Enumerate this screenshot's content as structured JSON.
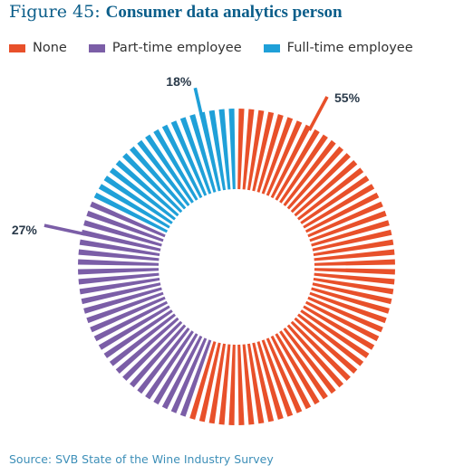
{
  "header": {
    "prefix": "Figure 45: ",
    "title": "Consumer data analytics person"
  },
  "chart_data": {
    "type": "pie",
    "style": "radial-bar donut",
    "title": "Consumer data analytics person",
    "legend_position": "top",
    "series": [
      {
        "name": "None",
        "value": 55,
        "label": "55%",
        "color": "#e8502a"
      },
      {
        "name": "Part-time employee",
        "value": 27,
        "label": "27%",
        "color": "#7b5ea7"
      },
      {
        "name": "Full-time employee",
        "value": 18,
        "label": "18%",
        "color": "#1fa0d8"
      }
    ]
  },
  "footer": {
    "source": "Source: SVB State of the Wine Industry Survey"
  }
}
